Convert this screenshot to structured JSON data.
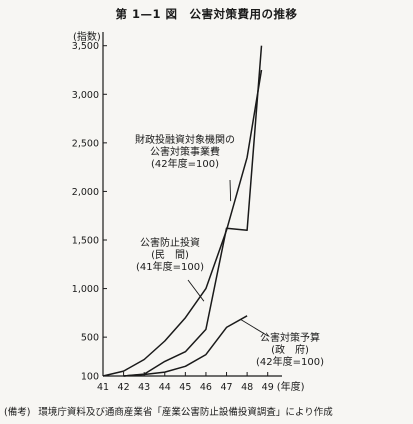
{
  "chart_data": {
    "type": "line",
    "title": "第 1—1 図　公害対策費用の推移",
    "ylabel": "(指数)",
    "xlabel": "(年度)",
    "x_ticks": [
      "41",
      "42",
      "43",
      "44",
      "45",
      "46",
      "47",
      "48",
      "49"
    ],
    "y_ticks": [
      "100",
      "500",
      "1,000",
      "1,500",
      "2,000",
      "2,500",
      "3,000",
      "3,500"
    ],
    "y_tick_values": [
      100,
      500,
      1000,
      1500,
      2000,
      2500,
      3000,
      3500
    ],
    "ylim": [
      100,
      3600
    ],
    "xlim": [
      41,
      49.5
    ],
    "grid": false,
    "series": [
      {
        "name": "財政投融資対象機関の公害対策事業費(42年度=100)",
        "label_lines": [
          "財政投融資対象機関の",
          "公害対策事業費",
          "(42年度=100)"
        ],
        "x": [
          42,
          43,
          44,
          45,
          46,
          47,
          48,
          48.7
        ],
        "y": [
          100,
          120,
          250,
          350,
          580,
          1620,
          1600,
          3500
        ]
      },
      {
        "name": "公害防止投資(民間)(41年度=100)",
        "label_lines": [
          "公害防止投資",
          "(民　間)",
          "(41年度=100)"
        ],
        "x": [
          41,
          42,
          43,
          44,
          45,
          46,
          47,
          48,
          48.7
        ],
        "y": [
          100,
          150,
          270,
          460,
          700,
          1000,
          1600,
          2350,
          3250
        ]
      },
      {
        "name": "公害対策予算(政府)(42年度=100)",
        "label_lines": [
          "公害対策予算",
          "(政　府)",
          "(42年度=100)"
        ],
        "x": [
          42,
          43,
          44,
          45,
          46,
          47,
          48
        ],
        "y": [
          100,
          115,
          140,
          200,
          320,
          600,
          720
        ]
      }
    ]
  },
  "source": {
    "tag": "(備考)",
    "text": "環境庁資料及び通商産業省「産業公害防止設備投資調査」により作成"
  }
}
